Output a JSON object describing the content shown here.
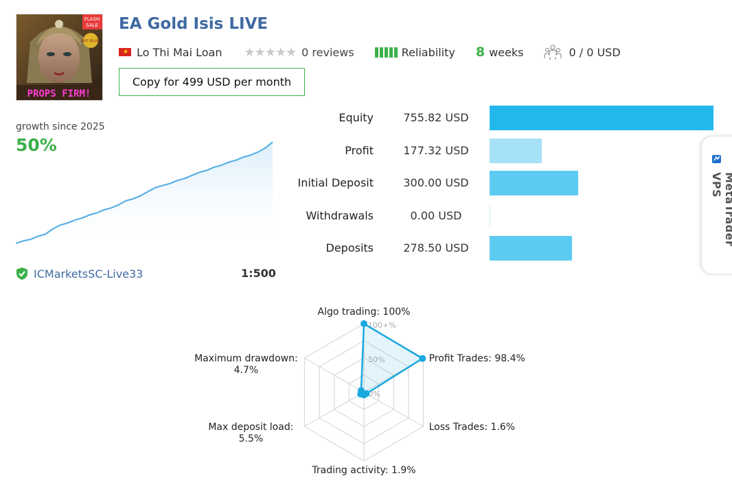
{
  "header": {
    "title": "EA Gold Isis LIVE",
    "author": "Lo Thi Mai Loan",
    "flag_symbol": "★",
    "stars": "★★★★★",
    "reviews": "0 reviews",
    "reliability_label": "Reliability",
    "weeks_value": "8",
    "weeks_label": "weeks",
    "subscribers": "0 / 0 USD",
    "copy_button": "Copy for 499 USD per month"
  },
  "avatar": {
    "badge_line1": "FLASH",
    "badge_line2": "SALE",
    "sticker": "BEST SELLER",
    "banner": "PROPS FIRM!"
  },
  "growth": {
    "label": "growth since 2025",
    "value": "50%",
    "series": [
      0.0,
      1.2,
      2.0,
      3.5,
      4.5,
      7.0,
      9.0,
      10.0,
      11.5,
      12.5,
      14.0,
      15.0,
      16.5,
      17.5,
      19.0,
      21.0,
      22.0,
      23.5,
      25.5,
      27.5,
      28.5,
      29.5,
      31.0,
      32.0,
      33.5,
      35.0,
      36.0,
      37.5,
      38.5,
      40.0,
      41.0,
      42.5,
      43.5,
      45.0,
      47.0,
      50.0
    ]
  },
  "account": {
    "server": "ICMarketsSC-Live33",
    "leverage": "1:500"
  },
  "stats": [
    {
      "label": "Equity",
      "value": "755.82 USD",
      "amount": 755.82,
      "color": "#23b8ec"
    },
    {
      "label": "Profit",
      "value": "177.32 USD",
      "amount": 177.32,
      "color": "#a6e1f7"
    },
    {
      "label": "Initial Deposit",
      "value": "300.00 USD",
      "amount": 300.0,
      "color": "#5ccbf1"
    },
    {
      "label": "Withdrawals",
      "value": "0.00 USD",
      "amount": 0.0,
      "color": "#5ccbf1"
    },
    {
      "label": "Deposits",
      "value": "278.50 USD",
      "amount": 278.5,
      "color": "#5ccbf1"
    }
  ],
  "vps": {
    "label": "MetaTrader VPS"
  },
  "chart_data": {
    "type": "radar",
    "axes": [
      {
        "label": "Algo trading: 100%",
        "value": 100
      },
      {
        "label": "Profit Trades: 98.4%",
        "value": 98.4
      },
      {
        "label": "Loss Trades: 1.6%",
        "value": 1.6
      },
      {
        "label": "Trading activity: 1.9%",
        "value": 1.9
      },
      {
        "label": "Max deposit load:",
        "label2": "5.5%",
        "value": 5.5
      },
      {
        "label": "Maximum drawdown:",
        "label2": "4.7%",
        "value": 4.7
      }
    ],
    "ticks": [
      "100+%",
      "50%",
      "0%"
    ],
    "range": [
      0,
      100
    ],
    "color": "#1aa8e0"
  }
}
